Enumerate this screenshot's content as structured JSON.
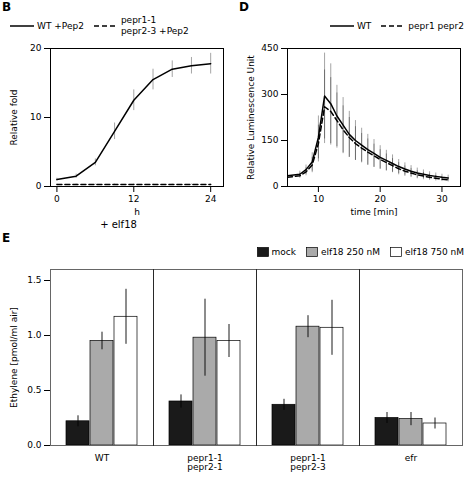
{
  "chart_data": [
    {
      "type": "line",
      "title": "B",
      "xlabel": "h",
      "ylabel": "Relative fold",
      "subtitle": "+ elf18",
      "xlim": [
        -1,
        26
      ],
      "xticks": [
        0,
        12,
        24
      ],
      "ylim": [
        0,
        20
      ],
      "yticks": [
        0,
        10,
        20
      ],
      "legend": "upper left",
      "series": [
        {
          "name": "WT +Pep2",
          "color": "#000000",
          "line_style": "solid",
          "x": [
            0,
            3,
            6,
            9,
            12,
            15,
            18,
            21,
            24
          ],
          "values": [
            1.0,
            1.5,
            3.5,
            8.0,
            12.5,
            15.5,
            17.0,
            17.5,
            17.8
          ],
          "errors": [
            0.2,
            0.3,
            0.5,
            1.2,
            1.5,
            1.5,
            1.2,
            1.2,
            1.5
          ]
        },
        {
          "name": "pepr1-1\npepr2-3 +Pep2",
          "color": "#000000",
          "line_style": "dashed",
          "x": [
            0,
            3,
            6,
            9,
            12,
            15,
            18,
            21,
            24
          ],
          "values": [
            0.3,
            0.3,
            0.3,
            0.3,
            0.3,
            0.3,
            0.3,
            0.3,
            0.3
          ],
          "errors": [
            0.05,
            0.05,
            0.05,
            0.05,
            0.05,
            0.05,
            0.05,
            0.05,
            0.05
          ]
        }
      ]
    },
    {
      "type": "line",
      "title": "D",
      "xlabel": "time [min]",
      "ylabel": "Relative Luminescence Unit",
      "xlim": [
        5,
        33
      ],
      "xticks": [
        10,
        20,
        30
      ],
      "ylim": [
        0,
        450
      ],
      "yticks": [
        0,
        150,
        300,
        450
      ],
      "legend": "upper right",
      "series": [
        {
          "name": "WT",
          "color": "#000000",
          "line_style": "solid",
          "x": [
            5,
            7,
            8,
            9,
            10,
            11,
            12,
            13,
            14,
            15,
            16,
            17,
            18,
            19,
            20,
            21,
            22,
            23,
            24,
            25,
            26,
            27,
            28,
            29,
            30,
            31
          ],
          "values": [
            35,
            40,
            55,
            80,
            160,
            295,
            270,
            230,
            200,
            170,
            150,
            135,
            120,
            108,
            95,
            85,
            75,
            65,
            57,
            50,
            44,
            40,
            36,
            33,
            30,
            28
          ],
          "errors": [
            8,
            10,
            15,
            30,
            70,
            140,
            130,
            100,
            90,
            75,
            65,
            55,
            50,
            45,
            38,
            33,
            28,
            23,
            20,
            18,
            16,
            14,
            12,
            11,
            10,
            9
          ]
        },
        {
          "name": "pepr1 pepr2",
          "color": "#000000",
          "line_style": "dashed",
          "x": [
            5,
            7,
            8,
            9,
            10,
            11,
            12,
            13,
            14,
            15,
            16,
            17,
            18,
            19,
            20,
            21,
            22,
            23,
            24,
            25,
            26,
            27,
            28,
            29,
            30,
            31
          ],
          "values": [
            30,
            35,
            48,
            70,
            140,
            260,
            245,
            215,
            185,
            160,
            140,
            125,
            112,
            100,
            88,
            78,
            68,
            58,
            50,
            44,
            38,
            34,
            30,
            27,
            24,
            22
          ],
          "errors": [
            7,
            8,
            13,
            25,
            60,
            120,
            110,
            90,
            78,
            65,
            55,
            48,
            43,
            38,
            32,
            28,
            23,
            20,
            17,
            15,
            13,
            12,
            10,
            9,
            8,
            7
          ]
        }
      ]
    },
    {
      "type": "bar",
      "title": "E",
      "ylabel": "Ethylene [pmol/ml air]",
      "categories": [
        "WT",
        "pepr1-1\npepr2-1",
        "pepr1-1\npepr2-3",
        "efr"
      ],
      "ylim": [
        0,
        1.6
      ],
      "yticks": [
        {
          "value": 0,
          "label": "0.0"
        },
        {
          "value": 0.5,
          "label": "0.5"
        },
        {
          "value": 1.0,
          "label": "1.0"
        },
        {
          "value": 1.5,
          "label": "1.5"
        }
      ],
      "legend": "upper right",
      "series": [
        {
          "name": "mock",
          "color": "#1a1a1a",
          "values": [
            0.22,
            0.4,
            0.37,
            0.25
          ],
          "errors": [
            0.05,
            0.06,
            0.05,
            0.05
          ]
        },
        {
          "name": "elf18 250 nM",
          "color": "#aaaaaa",
          "values": [
            0.95,
            0.98,
            1.08,
            0.24
          ],
          "errors": [
            0.08,
            0.35,
            0.1,
            0.06
          ]
        },
        {
          "name": "elf18 750 nM",
          "color": "#ffffff",
          "values": [
            1.17,
            0.95,
            1.07,
            0.2
          ],
          "errors": [
            0.25,
            0.15,
            0.25,
            0.05
          ]
        }
      ]
    }
  ]
}
